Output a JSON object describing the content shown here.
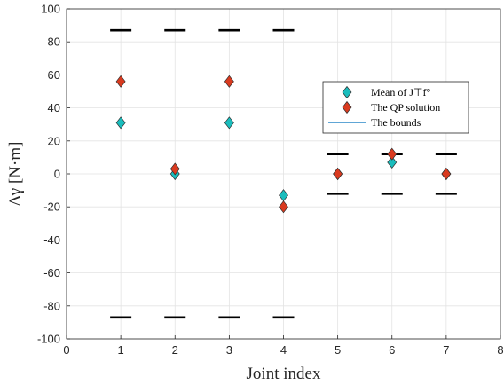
{
  "chart_data": {
    "type": "scatter",
    "xlabel": "Joint index",
    "ylabel": "Δγ [N·m]",
    "xlim": [
      0,
      8
    ],
    "ylim": [
      -100,
      100
    ],
    "xticks": [
      0,
      1,
      2,
      3,
      4,
      5,
      6,
      7,
      8
    ],
    "yticks": [
      -100,
      -80,
      -60,
      -40,
      -20,
      0,
      20,
      40,
      60,
      80,
      100
    ],
    "grid": true,
    "legend_position": "right-center",
    "series": [
      {
        "name": "Mean of J⊤f°",
        "marker": "diamond",
        "color": "#1ABDBD",
        "x": [
          1,
          2,
          3,
          4,
          5,
          6,
          7
        ],
        "y": [
          31,
          0,
          31,
          -13,
          0,
          7,
          0
        ]
      },
      {
        "name": "The QP solution",
        "marker": "diamond",
        "color": "#D93A1F",
        "x": [
          1,
          2,
          3,
          4,
          5,
          6,
          7
        ],
        "y": [
          56,
          3,
          56,
          -20,
          0,
          12,
          0
        ]
      },
      {
        "name": "The bounds",
        "marker": "line",
        "color": "#000000",
        "legend_color": "#0072BD",
        "x": [
          1,
          2,
          3,
          4,
          5,
          6,
          7
        ],
        "upper": [
          87,
          87,
          87,
          87,
          12,
          12,
          12
        ],
        "lower": [
          -87,
          -87,
          -87,
          -87,
          -12,
          -12,
          -12
        ]
      }
    ]
  }
}
